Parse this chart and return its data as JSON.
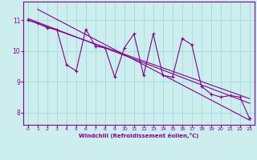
{
  "title": "",
  "xlabel": "Windchill (Refroidissement éolien,°C)",
  "ylabel": "",
  "background_color": "#cceeee",
  "line_color": "#880088",
  "xlim": [
    -0.5,
    23.5
  ],
  "ylim": [
    7.6,
    11.6
  ],
  "xticks": [
    0,
    1,
    2,
    3,
    4,
    5,
    6,
    7,
    8,
    9,
    10,
    11,
    12,
    13,
    14,
    15,
    16,
    17,
    18,
    19,
    20,
    21,
    22,
    23
  ],
  "yticks": [
    8,
    9,
    10,
    11
  ],
  "grid_color": "#aadddd",
  "data_x": [
    0,
    1,
    2,
    3,
    4,
    5,
    6,
    7,
    8,
    9,
    10,
    11,
    12,
    13,
    14,
    15,
    16,
    17,
    18,
    19,
    20,
    21,
    22,
    23
  ],
  "data_y": [
    11.0,
    10.9,
    10.75,
    10.7,
    9.55,
    9.35,
    10.7,
    10.15,
    10.1,
    9.15,
    10.1,
    10.55,
    9.2,
    10.55,
    9.2,
    9.15,
    10.4,
    10.2,
    8.85,
    8.6,
    8.5,
    8.55,
    8.5,
    7.8
  ],
  "trend1_x": [
    0,
    23
  ],
  "trend1_y": [
    11.0,
    8.45
  ],
  "trend2_x": [
    0,
    23
  ],
  "trend2_y": [
    11.05,
    8.3
  ],
  "trend3_x": [
    1,
    23
  ],
  "trend3_y": [
    11.35,
    7.75
  ],
  "marker": "+"
}
